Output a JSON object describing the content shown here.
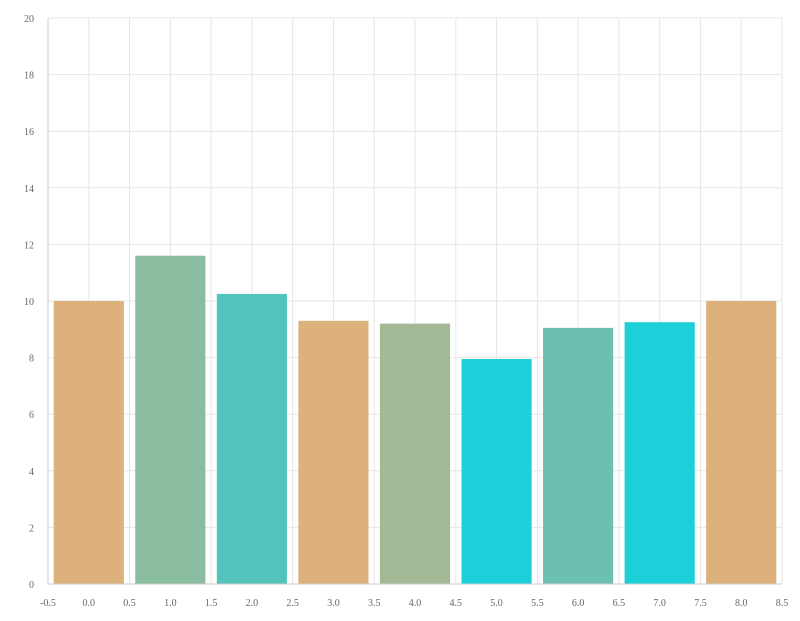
{
  "chart_data": {
    "type": "bar",
    "x": [
      0,
      1,
      2,
      3,
      4,
      5,
      6,
      7,
      8
    ],
    "values": [
      10.0,
      11.6,
      10.25,
      9.3,
      9.2,
      7.95,
      9.05,
      9.25,
      10.0
    ],
    "colors": [
      "#dcb17c",
      "#8abd9f",
      "#53c4bc",
      "#dcb17c",
      "#a3b995",
      "#1ccfd8",
      "#6bc0b0",
      "#1ccfd8",
      "#dcb17c"
    ],
    "xlim": [
      -0.5,
      8.5
    ],
    "ylim": [
      0,
      20
    ],
    "xticks": [
      "-0.5",
      "0.0",
      "0.5",
      "1.0",
      "1.5",
      "2.0",
      "2.5",
      "3.0",
      "3.5",
      "4.0",
      "4.5",
      "5.0",
      "5.5",
      "6.0",
      "6.5",
      "7.0",
      "7.5",
      "8.0",
      "8.5"
    ],
    "yticks": [
      "0",
      "2",
      "4",
      "6",
      "8",
      "10",
      "12",
      "14",
      "16",
      "18",
      "20"
    ],
    "grid": true,
    "title": "",
    "xlabel": "",
    "ylabel": ""
  }
}
